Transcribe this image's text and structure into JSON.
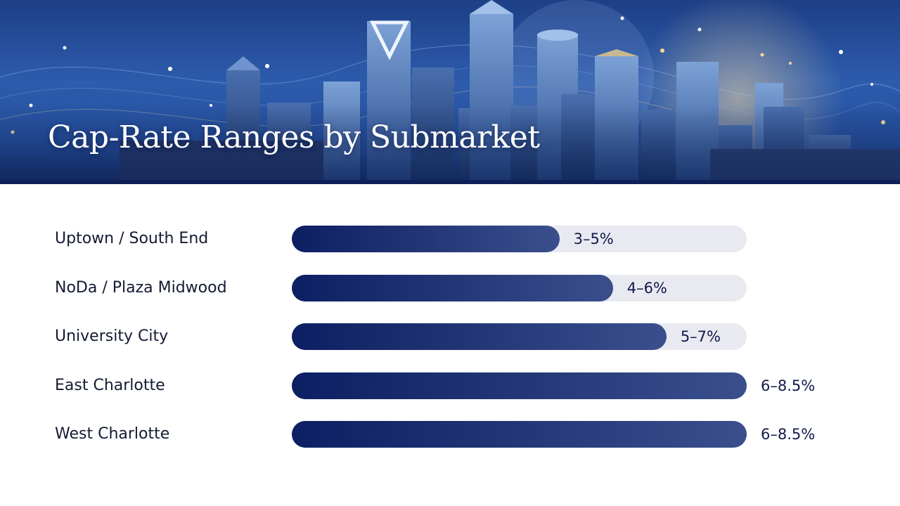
{
  "header": {
    "title": "Cap-Rate Ranges by Submarket"
  },
  "colors": {
    "bar_start": "#0c1f62",
    "bar_end": "#3a4f8c",
    "track": "#e9eaf1",
    "banner_rule": "#0f1f57"
  },
  "chart_data": {
    "type": "bar",
    "orientation": "horizontal",
    "title": "Cap-Rate Ranges by Submarket",
    "xlabel": "",
    "ylabel": "",
    "unit": "%",
    "xlim": [
      0,
      8.5
    ],
    "grid": false,
    "legend": "none",
    "categories": [
      "Uptown / South End",
      "NoDa / Plaza Midwood",
      "University City",
      "East Charlotte",
      "West Charlotte"
    ],
    "ranges": [
      [
        3,
        5
      ],
      [
        4,
        6
      ],
      [
        5,
        7
      ],
      [
        6,
        8.5
      ],
      [
        6,
        8.5
      ]
    ],
    "values": [
      5,
      6,
      7,
      8.5,
      8.5
    ],
    "labels": [
      "3–5%",
      "4–6%",
      "5–7%",
      "6–8.5%",
      "6–8.5%"
    ]
  }
}
